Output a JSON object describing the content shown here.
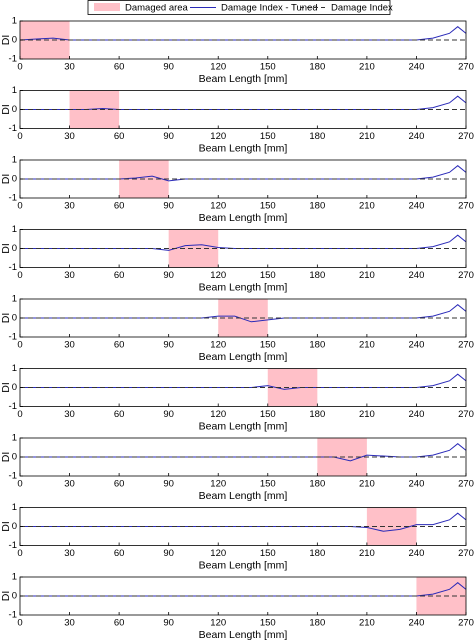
{
  "chart_data": [
    {
      "type": "line",
      "shade": {
        "name": "Damaged area",
        "range": [
          0,
          30
        ],
        "color": "#ffc0c8"
      },
      "xlabel": "Beam Length [mm]",
      "ylabel": "DI",
      "xlim": [
        0,
        270
      ],
      "xticks": [
        0,
        30,
        60,
        90,
        120,
        150,
        180,
        210,
        240,
        270
      ],
      "ylim": [
        -1,
        1
      ],
      "yticks": [
        -1,
        0,
        1
      ],
      "x": [
        0,
        10,
        20,
        30,
        40,
        50,
        60,
        70,
        80,
        90,
        100,
        110,
        120,
        130,
        140,
        150,
        160,
        170,
        180,
        190,
        200,
        210,
        220,
        230,
        240,
        250,
        260,
        265,
        270
      ],
      "series": [
        {
          "name": "Damage Index - Tuned",
          "color": "#2a2ab8",
          "dash": false,
          "values": [
            0,
            0.05,
            0.1,
            0,
            0,
            0,
            0,
            0,
            0,
            0,
            0,
            0,
            0,
            0,
            0,
            0,
            0,
            0,
            0,
            0,
            0,
            0,
            0,
            0,
            0,
            0.1,
            0.35,
            0.7,
            0.35
          ]
        },
        {
          "name": "Damage Index",
          "color": "#333333",
          "dash": true,
          "values": [
            0,
            0,
            0,
            0,
            0,
            0,
            0,
            0,
            0,
            0,
            0,
            0,
            0,
            0,
            0,
            0,
            0,
            0,
            0,
            0,
            0,
            0,
            0,
            0,
            0,
            0,
            0,
            0,
            0
          ]
        }
      ]
    },
    {
      "type": "line",
      "shade": {
        "range": [
          30,
          60
        ],
        "color": "#ffc0c8"
      },
      "xlabel": "Beam Length [mm]",
      "ylabel": "DI",
      "xlim": [
        0,
        270
      ],
      "xticks": [
        0,
        30,
        60,
        90,
        120,
        150,
        180,
        210,
        240,
        270
      ],
      "ylim": [
        -1,
        1
      ],
      "yticks": [
        -1,
        0,
        1
      ],
      "x": [
        0,
        10,
        20,
        30,
        40,
        50,
        60,
        70,
        80,
        90,
        100,
        110,
        120,
        130,
        140,
        150,
        160,
        170,
        180,
        190,
        200,
        210,
        220,
        230,
        240,
        250,
        260,
        265,
        270
      ],
      "series": [
        {
          "color": "#2a2ab8",
          "dash": false,
          "values": [
            0,
            0,
            0,
            0,
            0,
            0.05,
            0,
            0,
            0,
            0,
            0,
            0,
            0,
            0,
            0,
            0,
            0,
            0,
            0,
            0,
            0,
            0,
            0,
            0,
            0,
            0.1,
            0.35,
            0.7,
            0.35
          ]
        },
        {
          "color": "#333333",
          "dash": true,
          "values": [
            0,
            0,
            0,
            0,
            0,
            0,
            0,
            0,
            0,
            0,
            0,
            0,
            0,
            0,
            0,
            0,
            0,
            0,
            0,
            0,
            0,
            0,
            0,
            0,
            0,
            0,
            0,
            0,
            0
          ]
        }
      ]
    },
    {
      "type": "line",
      "shade": {
        "range": [
          60,
          90
        ],
        "color": "#ffc0c8"
      },
      "xlabel": "Beam Length [mm]",
      "ylabel": "DI",
      "xlim": [
        0,
        270
      ],
      "xticks": [
        0,
        30,
        60,
        90,
        120,
        150,
        180,
        210,
        240,
        270
      ],
      "ylim": [
        -1,
        1
      ],
      "yticks": [
        -1,
        0,
        1
      ],
      "x": [
        0,
        10,
        20,
        30,
        40,
        50,
        60,
        70,
        80,
        90,
        100,
        110,
        120,
        130,
        140,
        150,
        160,
        170,
        180,
        190,
        200,
        210,
        220,
        230,
        240,
        250,
        260,
        265,
        270
      ],
      "series": [
        {
          "color": "#2a2ab8",
          "dash": false,
          "values": [
            0,
            0,
            0,
            0,
            0,
            0,
            0,
            0.05,
            0.15,
            -0.1,
            0,
            0,
            0,
            0,
            0,
            0,
            0,
            0,
            0,
            0,
            0,
            0,
            0,
            0,
            0,
            0.1,
            0.35,
            0.7,
            0.35
          ]
        },
        {
          "color": "#333333",
          "dash": true,
          "values": [
            0,
            0,
            0,
            0,
            0,
            0,
            0,
            0,
            0,
            0,
            0,
            0,
            0,
            0,
            0,
            0,
            0,
            0,
            0,
            0,
            0,
            0,
            0,
            0,
            0,
            0,
            0,
            0,
            0
          ]
        }
      ]
    },
    {
      "type": "line",
      "shade": {
        "range": [
          90,
          120
        ],
        "color": "#ffc0c8"
      },
      "xlabel": "Beam Length [mm]",
      "ylabel": "DI",
      "xlim": [
        0,
        270
      ],
      "xticks": [
        0,
        30,
        60,
        90,
        120,
        150,
        180,
        210,
        240,
        270
      ],
      "ylim": [
        -1,
        1
      ],
      "yticks": [
        -1,
        0,
        1
      ],
      "x": [
        0,
        10,
        20,
        30,
        40,
        50,
        60,
        70,
        80,
        90,
        100,
        110,
        120,
        130,
        140,
        150,
        160,
        170,
        180,
        190,
        200,
        210,
        220,
        230,
        240,
        250,
        260,
        265,
        270
      ],
      "series": [
        {
          "color": "#2a2ab8",
          "dash": false,
          "values": [
            0,
            0,
            0,
            0,
            0,
            0,
            0,
            0,
            0,
            -0.1,
            0.15,
            0.2,
            0.05,
            0,
            0,
            0,
            0,
            0,
            0,
            0,
            0,
            0,
            0,
            0,
            0,
            0.1,
            0.35,
            0.7,
            0.35
          ]
        },
        {
          "color": "#333333",
          "dash": true,
          "values": [
            0,
            0,
            0,
            0,
            0,
            0,
            0,
            0,
            0,
            0,
            0,
            0,
            0,
            0,
            0,
            0,
            0,
            0,
            0,
            0,
            0,
            0,
            0,
            0,
            0,
            0,
            0,
            0,
            0
          ]
        }
      ]
    },
    {
      "type": "line",
      "shade": {
        "range": [
          120,
          150
        ],
        "color": "#ffc0c8"
      },
      "xlabel": "Beam Length [mm]",
      "ylabel": "DI",
      "xlim": [
        0,
        270
      ],
      "xticks": [
        0,
        30,
        60,
        90,
        120,
        150,
        180,
        210,
        240,
        270
      ],
      "ylim": [
        -1,
        1
      ],
      "yticks": [
        -1,
        0,
        1
      ],
      "x": [
        0,
        10,
        20,
        30,
        40,
        50,
        60,
        70,
        80,
        90,
        100,
        110,
        120,
        130,
        140,
        150,
        160,
        170,
        180,
        190,
        200,
        210,
        220,
        230,
        240,
        250,
        260,
        265,
        270
      ],
      "series": [
        {
          "color": "#2a2ab8",
          "dash": false,
          "values": [
            0,
            0,
            0,
            0,
            0,
            0,
            0,
            0,
            0,
            0,
            0,
            0,
            0.1,
            0.1,
            -0.2,
            -0.1,
            0,
            0,
            0,
            0,
            0,
            0,
            0,
            0,
            0,
            0.1,
            0.35,
            0.7,
            0.35
          ]
        },
        {
          "color": "#333333",
          "dash": true,
          "values": [
            0,
            0,
            0,
            0,
            0,
            0,
            0,
            0,
            0,
            0,
            0,
            0,
            0,
            0,
            0,
            0,
            0,
            0,
            0,
            0,
            0,
            0,
            0,
            0,
            0,
            0,
            0,
            0,
            0
          ]
        }
      ]
    },
    {
      "type": "line",
      "shade": {
        "range": [
          150,
          180
        ],
        "color": "#ffc0c8"
      },
      "xlabel": "Beam Length [mm]",
      "ylabel": "DI",
      "xlim": [
        0,
        270
      ],
      "xticks": [
        0,
        30,
        60,
        90,
        120,
        150,
        180,
        210,
        240,
        270
      ],
      "ylim": [
        -1,
        1
      ],
      "yticks": [
        -1,
        0,
        1
      ],
      "x": [
        0,
        10,
        20,
        30,
        40,
        50,
        60,
        70,
        80,
        90,
        100,
        110,
        120,
        130,
        140,
        150,
        160,
        170,
        180,
        190,
        200,
        210,
        220,
        230,
        240,
        250,
        260,
        265,
        270
      ],
      "series": [
        {
          "color": "#2a2ab8",
          "dash": false,
          "values": [
            0,
            0,
            0,
            0,
            0,
            0,
            0,
            0,
            0,
            0,
            0,
            0,
            0,
            0,
            0,
            0.1,
            -0.1,
            0,
            0,
            0,
            0,
            0,
            0,
            0,
            0,
            0.1,
            0.35,
            0.7,
            0.35
          ]
        },
        {
          "color": "#333333",
          "dash": true,
          "values": [
            0,
            0,
            0,
            0,
            0,
            0,
            0,
            0,
            0,
            0,
            0,
            0,
            0,
            0,
            0,
            0,
            0,
            0,
            0,
            0,
            0,
            0,
            0,
            0,
            0,
            0,
            0,
            0,
            0
          ]
        }
      ]
    },
    {
      "type": "line",
      "shade": {
        "range": [
          180,
          210
        ],
        "color": "#ffc0c8"
      },
      "xlabel": "Beam Length [mm]",
      "ylabel": "DI",
      "xlim": [
        0,
        270
      ],
      "xticks": [
        0,
        30,
        60,
        90,
        120,
        150,
        180,
        210,
        240,
        270
      ],
      "ylim": [
        -1,
        1
      ],
      "yticks": [
        -1,
        0,
        1
      ],
      "x": [
        0,
        10,
        20,
        30,
        40,
        50,
        60,
        70,
        80,
        90,
        100,
        110,
        120,
        130,
        140,
        150,
        160,
        170,
        180,
        190,
        200,
        210,
        220,
        230,
        240,
        250,
        260,
        265,
        270
      ],
      "series": [
        {
          "color": "#2a2ab8",
          "dash": false,
          "values": [
            0,
            0,
            0,
            0,
            0,
            0,
            0,
            0,
            0,
            0,
            0,
            0,
            0,
            0,
            0,
            0,
            0,
            0,
            0,
            0,
            -0.2,
            0.1,
            0.05,
            0,
            0,
            0.1,
            0.35,
            0.7,
            0.35
          ]
        },
        {
          "color": "#333333",
          "dash": true,
          "values": [
            0,
            0,
            0,
            0,
            0,
            0,
            0,
            0,
            0,
            0,
            0,
            0,
            0,
            0,
            0,
            0,
            0,
            0,
            0,
            0,
            0,
            0,
            0,
            0,
            0,
            0,
            0,
            0,
            0
          ]
        }
      ]
    },
    {
      "type": "line",
      "shade": {
        "range": [
          210,
          240
        ],
        "color": "#ffc0c8"
      },
      "xlabel": "Beam Length [mm]",
      "ylabel": "DI",
      "xlim": [
        0,
        270
      ],
      "xticks": [
        0,
        30,
        60,
        90,
        120,
        150,
        180,
        210,
        240,
        270
      ],
      "ylim": [
        -1,
        1
      ],
      "yticks": [
        -1,
        0,
        1
      ],
      "x": [
        0,
        10,
        20,
        30,
        40,
        50,
        60,
        70,
        80,
        90,
        100,
        110,
        120,
        130,
        140,
        150,
        160,
        170,
        180,
        190,
        200,
        210,
        220,
        230,
        240,
        250,
        260,
        265,
        270
      ],
      "series": [
        {
          "color": "#2a2ab8",
          "dash": false,
          "values": [
            0,
            0,
            0,
            0,
            0,
            0,
            0,
            0,
            0,
            0,
            0,
            0,
            0,
            0,
            0,
            0,
            0,
            0,
            0,
            0,
            0,
            -0.05,
            -0.25,
            -0.15,
            0.1,
            0.1,
            0.35,
            0.7,
            0.35
          ]
        },
        {
          "color": "#333333",
          "dash": true,
          "values": [
            0,
            0,
            0,
            0,
            0,
            0,
            0,
            0,
            0,
            0,
            0,
            0,
            0,
            0,
            0,
            0,
            0,
            0,
            0,
            0,
            0,
            0,
            0,
            0,
            0,
            0,
            0,
            0,
            0
          ]
        }
      ]
    },
    {
      "type": "line",
      "shade": {
        "range": [
          240,
          270
        ],
        "color": "#ffc0c8"
      },
      "xlabel": "Beam Length [mm]",
      "ylabel": "DI",
      "xlim": [
        0,
        270
      ],
      "xticks": [
        0,
        30,
        60,
        90,
        120,
        150,
        180,
        210,
        240,
        270
      ],
      "ylim": [
        -1,
        1
      ],
      "yticks": [
        -1,
        0,
        1
      ],
      "x": [
        0,
        10,
        20,
        30,
        40,
        50,
        60,
        70,
        80,
        90,
        100,
        110,
        120,
        130,
        140,
        150,
        160,
        170,
        180,
        190,
        200,
        210,
        220,
        230,
        240,
        250,
        260,
        265,
        270
      ],
      "series": [
        {
          "color": "#2a2ab8",
          "dash": false,
          "values": [
            0,
            0,
            0,
            0,
            0,
            0,
            0,
            0,
            0,
            0,
            0,
            0,
            0,
            0,
            0,
            0,
            0,
            0,
            0,
            0,
            0,
            0,
            0,
            0,
            0,
            0.1,
            0.35,
            0.7,
            0.35
          ]
        },
        {
          "color": "#333333",
          "dash": true,
          "values": [
            0,
            0,
            0,
            0,
            0,
            0,
            0,
            0,
            0,
            0,
            0,
            0,
            0,
            0,
            0,
            0,
            0,
            0,
            0,
            0,
            0,
            0,
            0,
            0,
            0,
            0,
            0,
            0,
            0
          ]
        }
      ]
    }
  ]
}
